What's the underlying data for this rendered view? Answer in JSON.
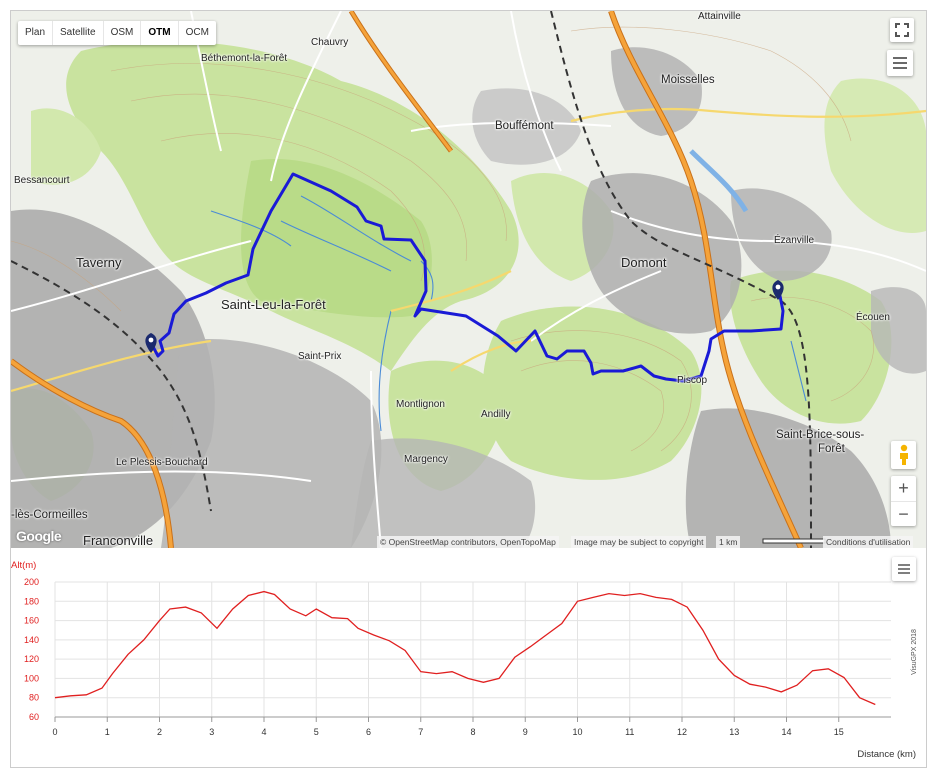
{
  "map_types": [
    "Plan",
    "Satellite",
    "OSM",
    "OTM",
    "OCM"
  ],
  "active_map_type": "OTM",
  "places": {
    "attainville": "Attainville",
    "chauvry": "Chauvry",
    "bethemont": "Béthemont-la-Forêt",
    "moisselles": "Moisselles",
    "bouffemont": "Bouffémont",
    "bessancourt": "Bessancourt",
    "ezanville": "Ézanville",
    "taverny": "Taverny",
    "domont": "Domont",
    "saint_leu": "Saint-Leu-la-Forêt",
    "ecouen": "Écouen",
    "saint_prix": "Saint-Prix",
    "piscop": "Piscop",
    "montlignon": "Montlignon",
    "andilly": "Andilly",
    "saint_brice_1": "Saint-Brice-sous-",
    "saint_brice_2": "Forêt",
    "margency": "Margency",
    "plessis": "Le Plessis-Bouchard",
    "cormeilles": "-lès-Cormeilles",
    "franconville": "Franconville"
  },
  "attribution": {
    "google": "Google",
    "osm": "© OpenStreetMap contributors, OpenTopoMap",
    "copyright": "Image may be subject to copyright",
    "scale": "1 km",
    "terms": "Conditions d'utilisation"
  },
  "controls": {
    "zoom_in": "+",
    "zoom_out": "−"
  },
  "colors": {
    "track": "#1a1ad6",
    "profile": "#e02020",
    "forest": "#c8e39a",
    "urban": "#9a9a9a",
    "motorway": "#f39b2a"
  },
  "chart_data": {
    "type": "line",
    "ylabel": "Alt(m)",
    "xlabel": "Distance (km)",
    "watermark": "VisuGPX 2018",
    "xlim": [
      0,
      16
    ],
    "ylim": [
      60,
      200
    ],
    "x_ticks": [
      0,
      1,
      2,
      3,
      4,
      5,
      6,
      7,
      8,
      9,
      10,
      11,
      12,
      13,
      14,
      15
    ],
    "y_ticks": [
      60,
      80,
      100,
      120,
      140,
      160,
      180,
      200
    ],
    "grid": true,
    "series": [
      {
        "x": [
          0,
          0.3,
          0.6,
          0.9,
          1.1,
          1.4,
          1.7,
          2.0,
          2.2,
          2.5,
          2.8,
          3.1,
          3.4,
          3.7,
          4.0,
          4.2,
          4.5,
          4.8,
          5.0,
          5.3,
          5.6,
          5.8,
          6.1,
          6.4,
          6.7,
          7.0,
          7.3,
          7.6,
          7.9,
          8.2,
          8.5,
          8.8,
          9.1,
          9.4,
          9.7,
          10.0,
          10.3,
          10.6,
          10.9,
          11.2,
          11.5,
          11.8,
          12.1,
          12.4,
          12.7,
          13.0,
          13.3,
          13.6,
          13.9,
          14.2,
          14.5,
          14.8,
          15.1,
          15.4,
          15.7
        ],
        "y": [
          80,
          82,
          83,
          90,
          105,
          125,
          140,
          160,
          172,
          174,
          168,
          152,
          172,
          186,
          190,
          187,
          172,
          165,
          172,
          163,
          162,
          152,
          145,
          139,
          129,
          107,
          105,
          107,
          100,
          96,
          100,
          122,
          133,
          145,
          157,
          180,
          184,
          188,
          186,
          188,
          184,
          182,
          174,
          150,
          120,
          103,
          94,
          91,
          86,
          93,
          108,
          110,
          101,
          80,
          73
        ]
      }
    ]
  }
}
